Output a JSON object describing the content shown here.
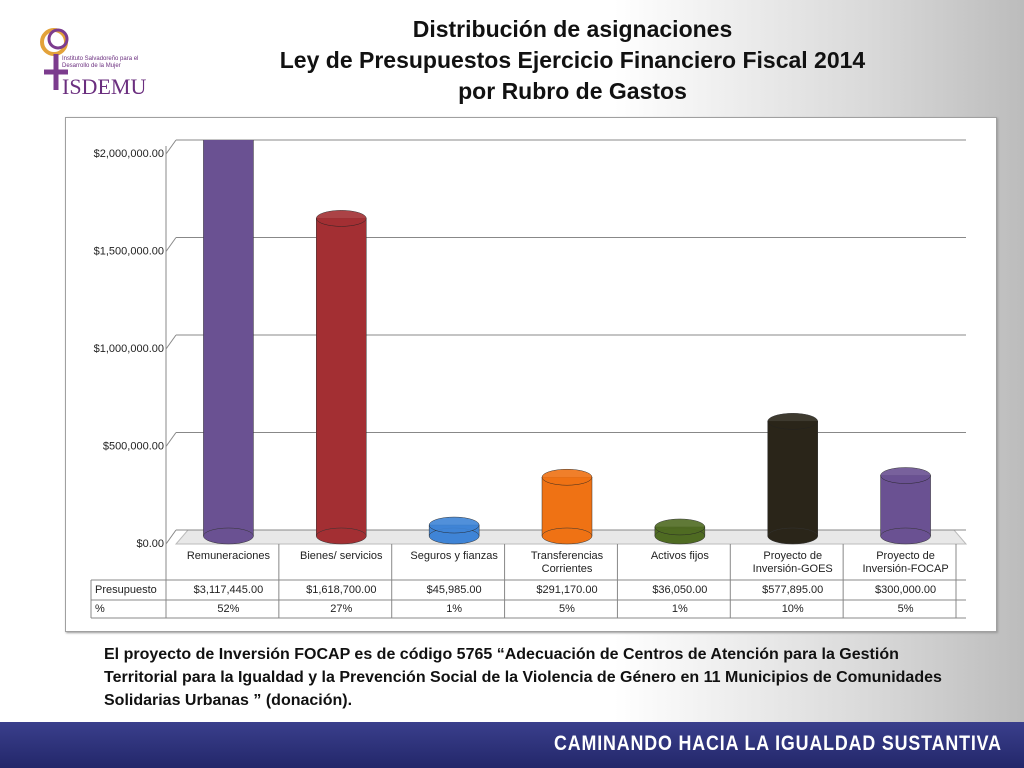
{
  "logo": {
    "caption": "Instituto Salvadoreño para el Desarrollo de la Mujer",
    "name": "ISDEMU"
  },
  "chart_data": {
    "type": "bar",
    "title": "Distribución de asignaciones",
    "subtitle": [
      "Ley de Presupuestos Ejercicio Financiero Fiscal 2014",
      "por Rubro de Gastos"
    ],
    "categories": [
      "Remuneraciones",
      "Bienes/ servicios",
      "Seguros y fianzas",
      "Transferencias Corrientes",
      "Activos fijos",
      "Proyecto de Inversión-GOES",
      "Proyecto de Inversión-FOCAP"
    ],
    "series": [
      {
        "name": "Presupuesto",
        "colors": [
          "#6a5192",
          "#a32f33",
          "#3f84d6",
          "#ef7214",
          "#4f6b22",
          "#2a2519",
          "#6a5192"
        ],
        "values": [
          3117445,
          1618700,
          45985,
          291170,
          36050,
          577895,
          300000
        ],
        "value_labels": [
          "$3,117,445.00",
          "$1,618,700.00",
          "$45,985.00",
          "$291,170.00",
          "$36,050.00",
          "$577,895.00",
          "$300,000.00"
        ]
      }
    ],
    "percentages": {
      "name": "%",
      "values": [
        52,
        27,
        1,
        5,
        1,
        10,
        5
      ],
      "value_labels": [
        "52%",
        "27%",
        "1%",
        "5%",
        "1%",
        "10%",
        "5%"
      ]
    },
    "ylim": [
      0,
      2000000
    ],
    "yticks": [
      {
        "value": 0,
        "label": "$0.00"
      },
      {
        "value": 500000,
        "label": "$500,000.00"
      },
      {
        "value": 1000000,
        "label": "$1,000,000.00"
      },
      {
        "value": 1500000,
        "label": "$1,500,000.00"
      },
      {
        "value": 2000000,
        "label": "$2,000,000.00"
      }
    ],
    "grid": true
  },
  "note": "El proyecto de Inversión  FOCAP es de código 5765  “Adecuación de Centros de Atención para la Gestión Territorial para la Igualdad y la Prevención Social de la Violencia de Género en 11 Municipios de Comunidades Solidarias Urbanas ” (donación).",
  "footer": "CAMINANDO HACIA LA IGUALDAD SUSTANTIVA"
}
